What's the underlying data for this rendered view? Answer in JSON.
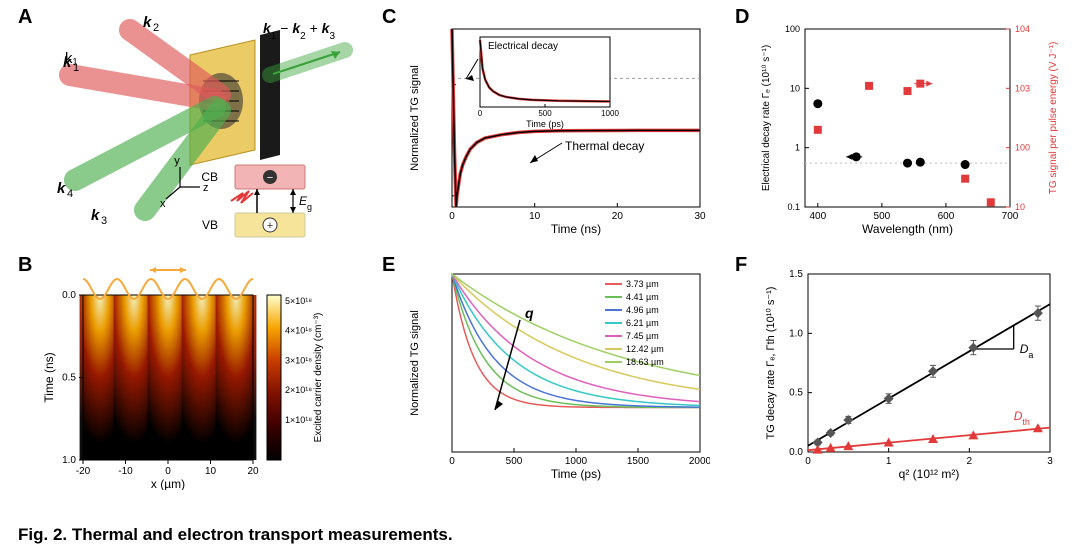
{
  "caption": "Fig. 2. Thermal and electron transport measurements.",
  "panels": {
    "A": {
      "label": "A",
      "beams": {
        "k1": {
          "color": "#e05a5a",
          "label": "k₁"
        },
        "k2": {
          "color": "#e05a5a",
          "label": "k₂"
        },
        "k3": {
          "color": "#4fae4f",
          "label": "k₃"
        },
        "k4": {
          "color": "#4fae4f",
          "label": "k₄"
        },
        "out": {
          "color": "#3aa23a",
          "label": "k₁ − k₂ + k₃"
        }
      },
      "axes": {
        "x": "x",
        "y": "y",
        "z": "z"
      },
      "band": {
        "cb_label": "CB",
        "cb_color": "#f2b4b4",
        "vb_label": "VB",
        "vb_color": "#f5e49a",
        "eg_label": "Eg"
      },
      "sample_color": "#e7c24a",
      "aperture_color": "#1a1a1a"
    },
    "B": {
      "label": "B",
      "xlabel": "x (µm)",
      "ylabel": "Time (ns)",
      "x_ticks": [
        -20,
        -10,
        0,
        10,
        20
      ],
      "y_ticks": [
        0.0,
        0.5,
        1.0
      ],
      "colorbar_label": "Excited carrier density (cm⁻³)",
      "colorbar_ticks": [
        "5×10¹⁸",
        "4×10¹⁸",
        "3×10¹⁸",
        "2×10¹⁸",
        "1×10¹⁸"
      ],
      "grating_color": "#f7a93b",
      "cmap_colors": [
        "#000000",
        "#3a0000",
        "#7f1000",
        "#c83c00",
        "#f7a400",
        "#ffffcc"
      ]
    },
    "C": {
      "label": "C",
      "type": "line",
      "xlabel": "Time (ns)",
      "ylabel": "Normalized TG signal",
      "xlim": [
        0,
        30
      ],
      "x_ticks": [
        0,
        10,
        20,
        30
      ],
      "ylim": [
        -0.6,
        1.0
      ],
      "annotations": {
        "thermal": "Thermal decay",
        "electrical": "Electrical decay"
      },
      "inset": {
        "xlabel": "Time (ps)",
        "xlim": [
          0,
          1000
        ],
        "x_ticks": [
          0,
          500,
          1000
        ]
      },
      "main_curve": {
        "x": [
          0,
          0.3,
          0.5,
          0.6,
          0.8,
          1.0,
          1.3,
          1.7,
          2.2,
          3,
          4,
          6,
          8,
          10,
          13,
          16,
          20,
          25,
          30
        ],
        "y": [
          1.0,
          -0.1,
          -0.6,
          -0.5,
          -0.4,
          -0.3,
          -0.22,
          -0.15,
          -0.08,
          -0.02,
          0.02,
          0.05,
          0.07,
          0.08,
          0.085,
          0.087,
          0.088,
          0.089,
          0.089
        ]
      },
      "fit_color": "#e23a3a",
      "data_color": "#000000",
      "inset_curve": {
        "x": [
          0,
          20,
          40,
          70,
          100,
          150,
          200,
          300,
          400,
          600,
          800,
          1000
        ],
        "y": [
          1.0,
          0.55,
          0.38,
          0.26,
          0.2,
          0.14,
          0.11,
          0.08,
          0.065,
          0.05,
          0.045,
          0.04
        ]
      }
    },
    "D": {
      "label": "D",
      "type": "scatter-dualy",
      "xlabel": "Wavelength (nm)",
      "xlim": [
        380,
        700
      ],
      "x_ticks": [
        400,
        500,
        600,
        700
      ],
      "y1label": "Electrical decay rate Γₑ (10¹⁰ s⁻¹)",
      "y1lim_log": [
        0.1,
        100
      ],
      "y1_ticks": [
        0.1,
        1,
        10,
        100
      ],
      "y2label": "TG signal per pulse energy (V J⁻¹)",
      "y2lim_log": [
        10,
        10000
      ],
      "y2_ticks": [
        10,
        100,
        1000,
        10000
      ],
      "y2_color": "#e23a3a",
      "series_rate": {
        "color": "#000000",
        "marker": "circle",
        "points": [
          [
            400,
            5.5
          ],
          [
            460,
            0.7
          ],
          [
            540,
            0.55
          ],
          [
            560,
            0.57
          ],
          [
            630,
            0.52
          ]
        ]
      },
      "series_signal": {
        "color": "#e23a3a",
        "marker": "square",
        "points": [
          [
            400,
            200
          ],
          [
            480,
            1100
          ],
          [
            540,
            900
          ],
          [
            560,
            1200
          ],
          [
            630,
            30
          ],
          [
            670,
            12
          ]
        ]
      },
      "reference_line": 0.55,
      "reference_color": "#bdbdbd"
    },
    "E": {
      "label": "E",
      "type": "multi-line",
      "xlabel": "Time (ps)",
      "ylabel": "Normalized TG signal",
      "xlim": [
        0,
        2000
      ],
      "x_ticks": [
        0,
        500,
        1000,
        1500,
        2000
      ],
      "ylim": [
        0,
        1
      ],
      "arrow_label": "q",
      "series": [
        {
          "label": "3.73 µm",
          "color": "#e65b5b",
          "tau_ps": 180
        },
        {
          "label": "4.41 µm",
          "color": "#6bbf59",
          "tau_ps": 260
        },
        {
          "label": "4.96 µm",
          "color": "#4a74d6",
          "tau_ps": 340
        },
        {
          "label": "6.21 µm",
          "color": "#36c7c7",
          "tau_ps": 480
        },
        {
          "label": "7.45 µm",
          "color": "#de5fbc",
          "tau_ps": 640
        },
        {
          "label": "12.42 µm",
          "color": "#d7c95a",
          "tau_ps": 1000
        },
        {
          "label": "18.63 µm",
          "color": "#9fcf63",
          "tau_ps": 1400
        }
      ],
      "floor": 0.25
    },
    "F": {
      "label": "F",
      "type": "scatter-fit",
      "xlabel": "q² (10¹² m²)",
      "ylabel": "TG decay rate Γₑ, Γth (10¹⁰ s⁻¹)",
      "xlim": [
        0,
        3.0
      ],
      "x_ticks": [
        0,
        1,
        2,
        3
      ],
      "ylim": [
        0,
        1.5
      ],
      "y_ticks": [
        0,
        0.5,
        1.0,
        1.5
      ],
      "series_e": {
        "color": "#555555",
        "marker": "diamond",
        "fit_color": "#000000",
        "fit_label": "Dₐ",
        "points": [
          [
            0.12,
            0.08
          ],
          [
            0.28,
            0.16
          ],
          [
            0.5,
            0.27
          ],
          [
            1.0,
            0.45
          ],
          [
            1.55,
            0.68
          ],
          [
            2.05,
            0.88
          ],
          [
            2.85,
            1.17
          ]
        ],
        "yerr": [
          0.02,
          0.02,
          0.03,
          0.04,
          0.05,
          0.06,
          0.06
        ]
      },
      "series_th": {
        "color": "#e23a3a",
        "marker": "triangle",
        "fit_color": "#e23a3a",
        "fit_label": "Dth",
        "points": [
          [
            0.12,
            0.02
          ],
          [
            0.28,
            0.035
          ],
          [
            0.5,
            0.05
          ],
          [
            1.0,
            0.08
          ],
          [
            1.55,
            0.11
          ],
          [
            2.05,
            0.14
          ],
          [
            2.85,
            0.2
          ]
        ]
      }
    }
  }
}
